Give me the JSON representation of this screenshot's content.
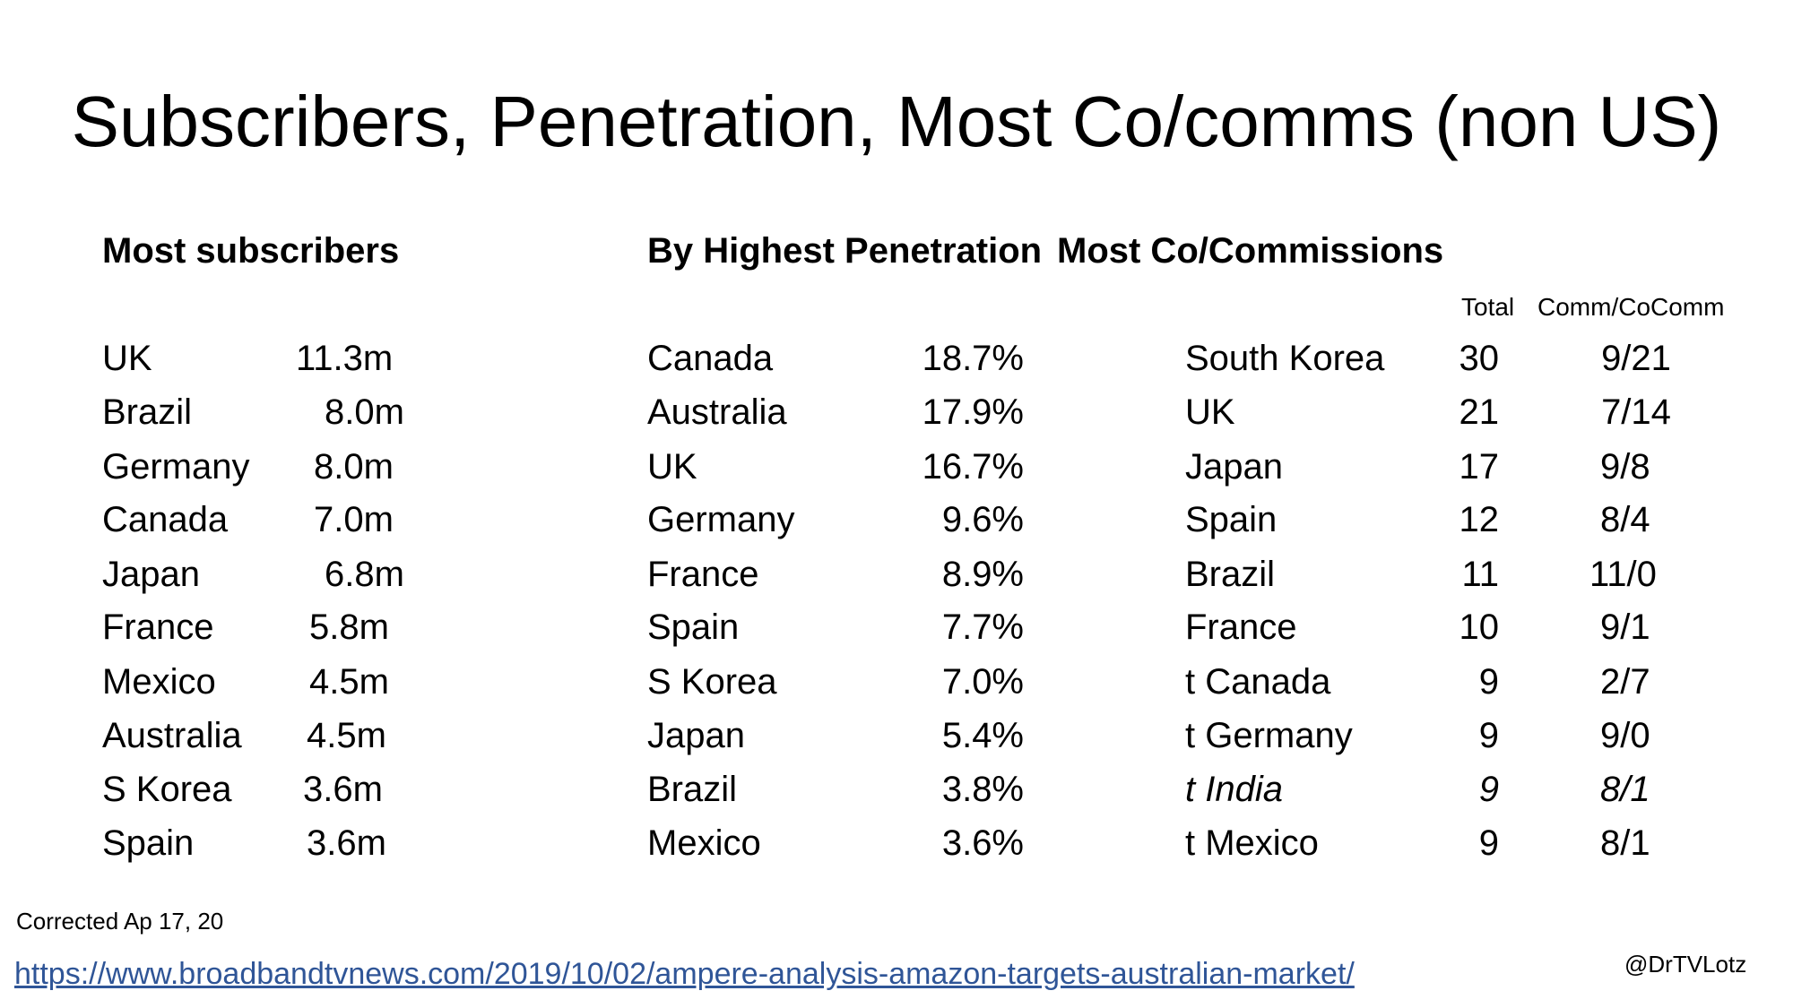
{
  "title": "Subscribers, Penetration, Most Co/comms (non US)",
  "headings": {
    "subscribers": "Most subscribers",
    "penetration": "By Highest Penetration",
    "commissions": "Most Co/Commissions"
  },
  "commissions_columns": {
    "total": "Total",
    "split": "Comm/CoComm"
  },
  "subscribers": [
    {
      "country": "UK",
      "value": "11.3m"
    },
    {
      "country": "Brazil",
      "value": "8.0m"
    },
    {
      "country": "Germany",
      "value": "8.0m"
    },
    {
      "country": "Canada",
      "value": "7.0m"
    },
    {
      "country": "Japan",
      "value": "6.8m"
    },
    {
      "country": "France",
      "value": "5.8m"
    },
    {
      "country": "Mexico",
      "value": "4.5m"
    },
    {
      "country": "Australia",
      "value": "4.5m"
    },
    {
      "country": "S Korea",
      "value": "3.6m"
    },
    {
      "country": "Spain",
      "value": "3.6m"
    }
  ],
  "penetration": [
    {
      "country": "Canada",
      "value": "18.7%"
    },
    {
      "country": "Australia",
      "value": "17.9%"
    },
    {
      "country": "UK",
      "value": "16.7%"
    },
    {
      "country": "Germany",
      "value": "9.6%"
    },
    {
      "country": "France",
      "value": "8.9%"
    },
    {
      "country": "Spain",
      "value": "7.7%"
    },
    {
      "country": "S Korea",
      "value": "7.0%"
    },
    {
      "country": "Japan",
      "value": "5.4%"
    },
    {
      "country": "Brazil",
      "value": "3.8%"
    },
    {
      "country": "Mexico",
      "value": "3.6%"
    }
  ],
  "commissions": [
    {
      "country": "South Korea",
      "total": "30",
      "split": "9/21"
    },
    {
      "country": "UK",
      "total": "21",
      "split": "7/14"
    },
    {
      "country": "Japan",
      "total": "17",
      "split": "9/8"
    },
    {
      "country": "Spain",
      "total": "12",
      "split": "8/4"
    },
    {
      "country": "Brazil",
      "total": "11",
      "split": "11/0"
    },
    {
      "country": "France",
      "total": "10",
      "split": "9/1"
    },
    {
      "country": "t Canada",
      "total": "9",
      "split": "2/7"
    },
    {
      "country": "t Germany",
      "total": "9",
      "split": "9/0"
    },
    {
      "country": "t India",
      "total": "9",
      "split": "8/1"
    },
    {
      "country": "t Mexico",
      "total": "9",
      "split": "8/1"
    }
  ],
  "note": "Corrected Ap 17, 20",
  "source_link": "https://www.broadbandtvnews.com/2019/10/02/ampere-analysis-amazon-targets-australian-market/",
  "handle": "@DrTVLotz"
}
